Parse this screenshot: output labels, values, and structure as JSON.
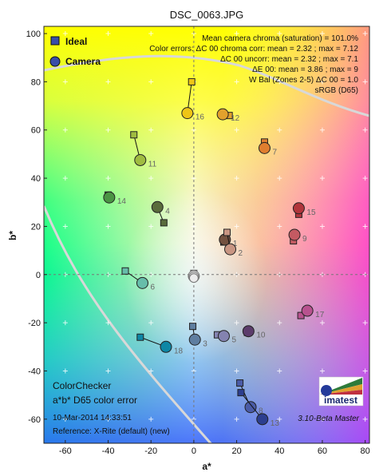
{
  "chart_data": {
    "type": "scatter",
    "title": "DSC_0063.JPG",
    "xlabel": "a*",
    "ylabel": "b*",
    "xlim": [
      -70,
      82
    ],
    "ylim": [
      -70,
      103
    ],
    "xticks": [
      -60,
      -40,
      -20,
      0,
      20,
      40,
      60,
      80
    ],
    "yticks": [
      100,
      80,
      60,
      40,
      20,
      0,
      -20,
      -40,
      -60
    ],
    "legend": {
      "placement": "top-left",
      "entries": [
        {
          "label": "Ideal",
          "marker": "square"
        },
        {
          "label": "Camera",
          "marker": "circle"
        }
      ]
    },
    "info_lines": [
      "Mean camera chroma (saturation) = 101.0%",
      "Color errors: ΔC 00 chroma corr:  mean = 2.32 ;  max = 7.12",
      "ΔC 00 uncorr:  mean = 2.32 ;  max = 7.1",
      "ΔE 00:  mean = 3.86 ;  max = 9",
      "W Bal (Zones 2-5) ΔC 00 = 1.0",
      "sRGB (D65)"
    ],
    "bottom_left": {
      "line1": "ColorChecker",
      "line2": "a*b* D65 color error",
      "date": "10-Mar-2014 14:33:51",
      "reference": "Reference: X-Rite (default) (new)"
    },
    "logo_text": "imatest",
    "version": "3.10-Beta  Master",
    "patches": [
      {
        "id": "1",
        "ideal": [
          14,
          13.5
        ],
        "camera": [
          14.5,
          14.5
        ],
        "color": "#73513f"
      },
      {
        "id": "2",
        "ideal": [
          15.5,
          17.5
        ],
        "camera": [
          17,
          10.5
        ],
        "color": "#c89582"
      },
      {
        "id": "3",
        "ideal": [
          -0.5,
          -21.5
        ],
        "camera": [
          0.5,
          -27
        ],
        "color": "#5f7ea0"
      },
      {
        "id": "4",
        "ideal": [
          -14,
          21.5
        ],
        "camera": [
          -17,
          28
        ],
        "color": "#5a6b3c"
      },
      {
        "id": "5",
        "ideal": [
          11,
          -25
        ],
        "camera": [
          14,
          -25.5
        ],
        "color": "#8483b0"
      },
      {
        "id": "6",
        "ideal": [
          -32,
          1.5
        ],
        "camera": [
          -24,
          -3.5
        ],
        "color": "#67bdaa"
      },
      {
        "id": "7",
        "ideal": [
          33,
          55
        ],
        "camera": [
          33,
          52.5
        ],
        "color": "#e07e2f"
      },
      {
        "id": "8",
        "ideal": [
          21.5,
          -45
        ],
        "camera": [
          26.5,
          -55
        ],
        "color": "#4a5ba7"
      },
      {
        "id": "9",
        "ideal": [
          46.5,
          14
        ],
        "camera": [
          47,
          16.5
        ],
        "color": "#c45a62"
      },
      {
        "id": "10",
        "ideal": [
          25,
          -24
        ],
        "camera": [
          25.5,
          -23.5
        ],
        "color": "#5c3c6b"
      },
      {
        "id": "11",
        "ideal": [
          -28,
          58
        ],
        "camera": [
          -25,
          47.5
        ],
        "color": "#a0bc40"
      },
      {
        "id": "12",
        "ideal": [
          16.5,
          66
        ],
        "camera": [
          13.5,
          66.5
        ],
        "color": "#e2a12d"
      },
      {
        "id": "13",
        "ideal": [
          22,
          -49
        ],
        "camera": [
          32,
          -60
        ],
        "color": "#2c3e8f"
      },
      {
        "id": "14",
        "ideal": [
          -40,
          33
        ],
        "camera": [
          -39.5,
          32
        ],
        "color": "#4a9444"
      },
      {
        "id": "15",
        "ideal": [
          49,
          25
        ],
        "camera": [
          49,
          27.5
        ],
        "color": "#b1353b"
      },
      {
        "id": "16",
        "ideal": [
          -1,
          80
        ],
        "camera": [
          -3,
          67
        ],
        "color": "#eec516"
      },
      {
        "id": "17",
        "ideal": [
          50,
          -17
        ],
        "camera": [
          53,
          -15
        ],
        "color": "#b8528f"
      },
      {
        "id": "18",
        "ideal": [
          -25,
          -26
        ],
        "camera": [
          -13,
          -30
        ],
        "color": "#0e87a5"
      }
    ],
    "neutrals": {
      "ideal": [
        0,
        0.5
      ],
      "camera": [
        0,
        -1
      ]
    }
  }
}
